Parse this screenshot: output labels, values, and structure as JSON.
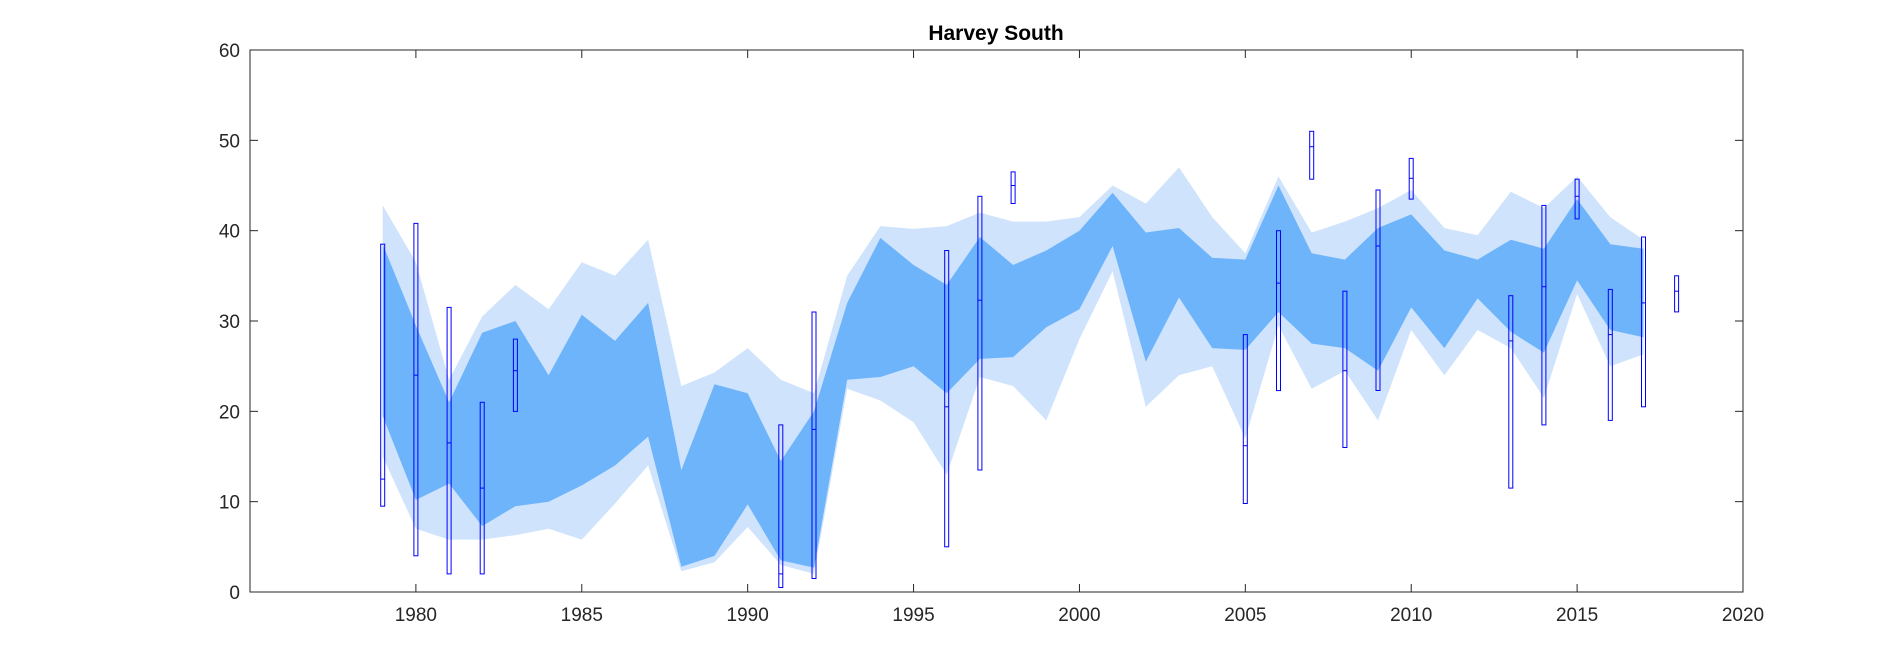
{
  "chart_data": {
    "type": "area",
    "title": "Harvey South",
    "xlabel": "",
    "ylabel": "",
    "xlim": [
      1975,
      2020
    ],
    "ylim": [
      0,
      60
    ],
    "xticks": [
      1980,
      1985,
      1990,
      1995,
      2000,
      2005,
      2010,
      2015,
      2020
    ],
    "yticks": [
      0,
      10,
      20,
      30,
      40,
      50,
      60
    ],
    "grid": false,
    "colors": {
      "outer_band": "#cfe3fc",
      "inner_band": "#6eb4fa",
      "observation_box": "#0000ff",
      "axes": "#262626"
    },
    "bands": {
      "x": [
        1979,
        1980,
        1981,
        1982,
        1983,
        1984,
        1985,
        1986,
        1987,
        1988,
        1989,
        1990,
        1991,
        1992,
        1993,
        1994,
        1995,
        1996,
        1997,
        1998,
        1999,
        2000,
        2001,
        2002,
        2003,
        2004,
        2005,
        2006,
        2007,
        2008,
        2009,
        2010,
        2011,
        2012,
        2013,
        2014,
        2015,
        2016,
        2017
      ],
      "outer_upper": [
        42.8,
        36.5,
        23.5,
        30.5,
        34.0,
        31.3,
        36.5,
        35.0,
        39.0,
        22.8,
        24.3,
        27.0,
        23.5,
        22.0,
        35.0,
        40.5,
        40.2,
        40.5,
        42.0,
        41.0,
        41.0,
        41.5,
        45.0,
        43.0,
        47.0,
        41.5,
        37.5,
        46.0,
        39.8,
        41.0,
        42.5,
        44.5,
        40.3,
        39.5,
        44.3,
        42.5,
        46.0,
        41.5,
        39.0
      ],
      "inner_upper": [
        38.5,
        29.5,
        21.0,
        28.7,
        30.0,
        24.0,
        30.7,
        27.8,
        32.0,
        13.5,
        23.0,
        22.0,
        14.5,
        20.0,
        32.0,
        39.2,
        36.2,
        34.0,
        39.3,
        36.2,
        37.8,
        40.0,
        44.2,
        39.8,
        40.3,
        37.0,
        36.8,
        45.0,
        37.5,
        36.8,
        40.3,
        41.8,
        37.8,
        36.8,
        39.0,
        38.0,
        43.5,
        38.5,
        38.0
      ],
      "inner_lower": [
        19.5,
        10.2,
        12.0,
        7.3,
        9.5,
        10.0,
        11.8,
        14.0,
        17.2,
        2.8,
        4.0,
        9.7,
        3.5,
        2.7,
        23.5,
        23.8,
        25.0,
        22.0,
        25.8,
        26.0,
        29.3,
        31.3,
        38.3,
        25.5,
        32.6,
        27.0,
        26.8,
        31.0,
        27.5,
        27.0,
        24.5,
        31.5,
        27.0,
        32.5,
        28.8,
        26.5,
        34.5,
        29.0,
        28.2
      ],
      "outer_lower": [
        15.0,
        7.0,
        5.8,
        5.8,
        6.3,
        7.0,
        5.8,
        9.8,
        14.0,
        2.3,
        3.3,
        7.2,
        3.0,
        2.0,
        22.5,
        21.2,
        18.8,
        13.0,
        23.8,
        22.8,
        19.0,
        28.0,
        35.5,
        20.5,
        24.0,
        25.0,
        17.0,
        29.5,
        22.5,
        24.5,
        19.0,
        29.0,
        24.0,
        29.0,
        27.0,
        21.5,
        33.0,
        25.0,
        26.3
      ]
    },
    "observations": [
      {
        "x": 1979,
        "low": 9.5,
        "high": 38.5,
        "mid": 12.5
      },
      {
        "x": 1980,
        "low": 4.0,
        "high": 40.8,
        "mid": 24.0
      },
      {
        "x": 1981,
        "low": 2.0,
        "high": 31.5,
        "mid": 16.5
      },
      {
        "x": 1982,
        "low": 2.0,
        "high": 21.0,
        "mid": 11.5
      },
      {
        "x": 1983,
        "low": 20.0,
        "high": 28.0,
        "mid": 24.5
      },
      {
        "x": 1991,
        "low": 0.5,
        "high": 18.5,
        "mid": 2.0
      },
      {
        "x": 1992,
        "low": 1.5,
        "high": 31.0,
        "mid": 18.0
      },
      {
        "x": 1996,
        "low": 5.0,
        "high": 37.8,
        "mid": 20.5
      },
      {
        "x": 1997,
        "low": 13.5,
        "high": 43.8,
        "mid": 32.3
      },
      {
        "x": 1998,
        "low": 43.0,
        "high": 46.5,
        "mid": 45.0
      },
      {
        "x": 2005,
        "low": 9.8,
        "high": 28.5,
        "mid": 16.2
      },
      {
        "x": 2006,
        "low": 22.3,
        "high": 40.0,
        "mid": 34.2
      },
      {
        "x": 2007,
        "low": 45.7,
        "high": 51.0,
        "mid": 49.3
      },
      {
        "x": 2008,
        "low": 16.0,
        "high": 33.3,
        "mid": 24.5
      },
      {
        "x": 2009,
        "low": 22.3,
        "high": 44.5,
        "mid": 38.3
      },
      {
        "x": 2010,
        "low": 43.5,
        "high": 48.0,
        "mid": 45.8
      },
      {
        "x": 2013,
        "low": 11.5,
        "high": 32.8,
        "mid": 27.8
      },
      {
        "x": 2014,
        "low": 18.5,
        "high": 42.8,
        "mid": 33.8
      },
      {
        "x": 2015,
        "low": 41.3,
        "high": 45.7,
        "mid": 43.8
      },
      {
        "x": 2016,
        "low": 19.0,
        "high": 33.5,
        "mid": 28.5
      },
      {
        "x": 2017,
        "low": 20.5,
        "high": 39.3,
        "mid": 32.0
      },
      {
        "x": 2018,
        "low": 31.0,
        "high": 35.0,
        "mid": 33.3
      }
    ]
  }
}
